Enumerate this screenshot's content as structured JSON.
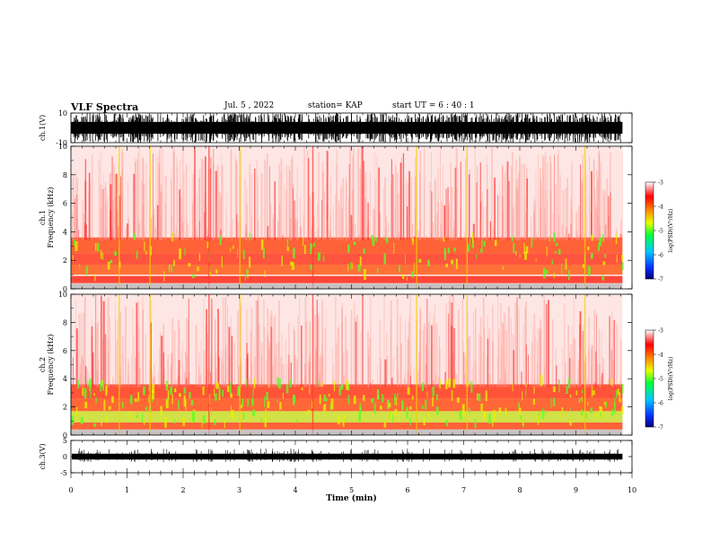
{
  "header": {
    "title": "VLF Spectra",
    "date": "Jul. 5 , 2022",
    "station": "station= KAP",
    "start": "start UT =   6 : 40 : 1"
  },
  "chart_data": {
    "type": "heatmap",
    "title": "VLF Spectra",
    "x": {
      "label": "Time (min)",
      "range": [
        0,
        10
      ],
      "ticks": [
        0,
        1,
        2,
        3,
        4,
        5,
        6,
        7,
        8,
        9,
        10
      ],
      "data_end": 9.83
    },
    "panels": [
      {
        "id": "ch1-waveform",
        "kind": "waveform",
        "ylabel": "ch.1(V)",
        "ylim": [
          -10,
          10
        ],
        "tick_labels": [
          "10",
          "-10"
        ]
      },
      {
        "id": "ch1-spectrogram",
        "kind": "spectrogram",
        "ylabel_line1": "ch.1",
        "ylabel_line2": "Frequency (kHz)",
        "ylim": [
          0,
          10
        ],
        "ticks": [
          0,
          2,
          4,
          6,
          8,
          10
        ],
        "bands": [
          {
            "from": 0.4,
            "to": 0.9,
            "color": "#ff2a1a"
          },
          {
            "from": 1.0,
            "to": 1.7,
            "color": "#ff5a1a"
          },
          {
            "from": 1.7,
            "to": 2.5,
            "color": "#ff3a20"
          },
          {
            "from": 2.5,
            "to": 3.6,
            "color": "#ff4a18"
          }
        ],
        "colorbar": {
          "label": "log(PSD)(V²/Hz)",
          "range": [
            -7,
            -3
          ],
          "ticks": [
            "-3",
            "-4",
            "-5",
            "-6",
            "-7"
          ]
        }
      },
      {
        "id": "ch2-spectrogram",
        "kind": "spectrogram",
        "ylabel_line1": "ch.2",
        "ylabel_line2": "Frequency (kHz)",
        "ylim": [
          0,
          10
        ],
        "ticks": [
          0,
          2,
          4,
          6,
          8,
          10
        ],
        "bands": [
          {
            "from": 0.4,
            "to": 0.9,
            "color": "#ff4a18"
          },
          {
            "from": 0.9,
            "to": 1.7,
            "color": "#c8e02a"
          },
          {
            "from": 1.7,
            "to": 2.6,
            "color": "#ff5018"
          },
          {
            "from": 2.6,
            "to": 3.6,
            "color": "#ff3a1a"
          }
        ],
        "colorbar": {
          "label": "log(PSD)(V²/Hz)",
          "range": [
            -7,
            -3
          ],
          "ticks": [
            "-3",
            "-4",
            "-5",
            "-6",
            "-7"
          ]
        }
      },
      {
        "id": "ch3-waveform",
        "kind": "waveform",
        "ylabel": "ch.3(V)",
        "ylim": [
          -5,
          5
        ],
        "tick_labels": [
          "5",
          "0",
          "-5"
        ]
      }
    ]
  }
}
